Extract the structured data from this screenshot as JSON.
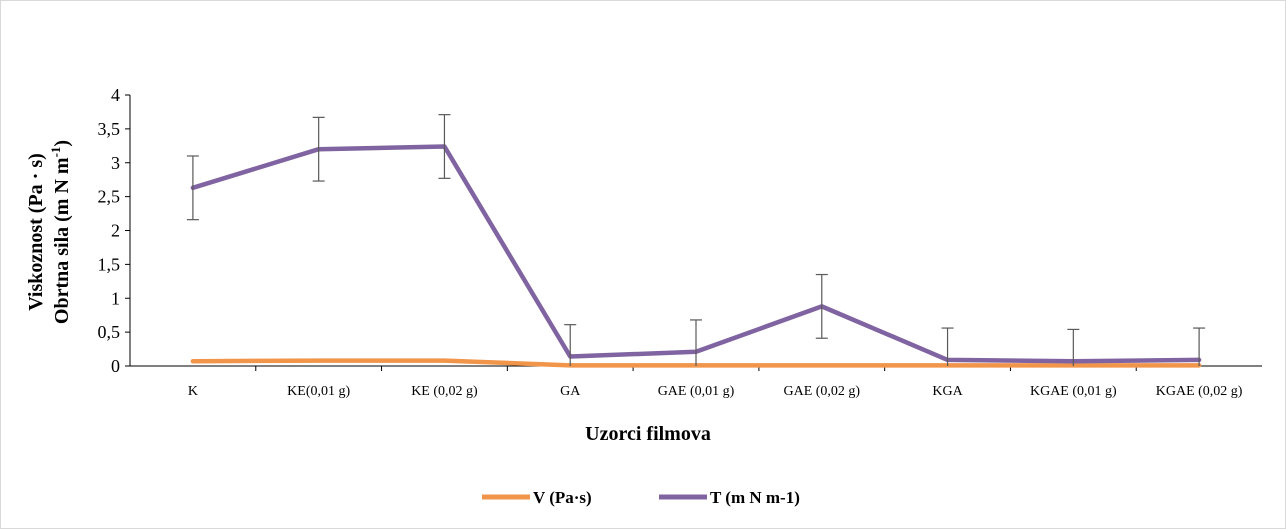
{
  "chart_data": {
    "type": "line",
    "categories": [
      "K",
      "KE(0,01 g)",
      "KE (0,02 g)",
      "GA",
      "GAE (0,01 g)",
      "GAE (0,02 g)",
      "KGA",
      "KGAE (0,01 g)",
      "KGAE (0,02 g)"
    ],
    "series": [
      {
        "name": "V (Pa·s)",
        "color": "#f0954a",
        "values": [
          0.07,
          0.08,
          0.08,
          0.01,
          0.01,
          0.01,
          0.01,
          0.01,
          0.01
        ]
      },
      {
        "name": "T (m N m-1)",
        "color": "#8064a2",
        "values": [
          2.63,
          3.2,
          3.24,
          0.14,
          0.21,
          0.88,
          0.09,
          0.07,
          0.09
        ],
        "error": [
          0.47,
          0.47,
          0.47,
          0.47,
          0.47,
          0.47,
          0.47,
          0.47,
          0.47
        ]
      }
    ],
    "yticks": [
      "0",
      "0,5",
      "1",
      "1,5",
      "2",
      "2,5",
      "3",
      "3,5",
      "4"
    ],
    "ylim": [
      0,
      4
    ],
    "xlabel": "Uzorci filmova",
    "ylabel_line1": "Viskoznost (Pa · s)",
    "ylabel_line2_main": "Obrtna sila (m N m",
    "ylabel_line2_sup": "-1",
    "ylabel_line2_end": ")",
    "legend_position": "bottom",
    "grid": false
  }
}
